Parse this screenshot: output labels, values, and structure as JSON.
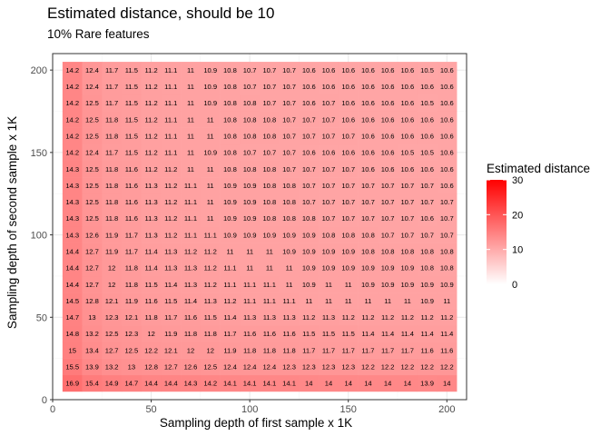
{
  "chart_data": {
    "type": "heatmap",
    "title": "Estimated distance, should be 10",
    "subtitle": "10% Rare features",
    "xlabel": "Sampling depth of first sample x 1K",
    "ylabel": "Sampling depth of second sample x 1K",
    "xlim": [
      0,
      210
    ],
    "ylim": [
      0,
      210
    ],
    "x_ticks": [
      0,
      50,
      100,
      150,
      200
    ],
    "y_ticks": [
      0,
      50,
      100,
      150,
      200
    ],
    "grid": true,
    "x": [
      10,
      20,
      30,
      40,
      50,
      60,
      70,
      80,
      90,
      100,
      110,
      120,
      130,
      140,
      150,
      160,
      170,
      180,
      190,
      200
    ],
    "y": [
      10,
      20,
      30,
      40,
      50,
      60,
      70,
      80,
      90,
      100,
      110,
      120,
      130,
      140,
      150,
      160,
      170,
      180,
      190,
      200
    ],
    "values": [
      [
        "16.9",
        "15.4",
        "14.9",
        "14.7",
        "14.4",
        "14.4",
        "14.3",
        "14.2",
        "14.1",
        "14.1",
        "14.1",
        "14.1",
        "14",
        "14",
        "14",
        "14",
        "14",
        "14",
        "13.9",
        "14"
      ],
      [
        "15.5",
        "13.9",
        "13.2",
        "13",
        "12.8",
        "12.7",
        "12.6",
        "12.5",
        "12.4",
        "12.4",
        "12.4",
        "12.3",
        "12.3",
        "12.3",
        "12.3",
        "12.2",
        "12.2",
        "12.2",
        "12.2",
        "12.2"
      ],
      [
        "15",
        "13.4",
        "12.7",
        "12.5",
        "12.2",
        "12.1",
        "12",
        "12",
        "11.9",
        "11.8",
        "11.8",
        "11.8",
        "11.7",
        "11.7",
        "11.7",
        "11.7",
        "11.7",
        "11.7",
        "11.6",
        "11.6"
      ],
      [
        "14.8",
        "13.2",
        "12.5",
        "12.3",
        "12",
        "11.9",
        "11.8",
        "11.8",
        "11.7",
        "11.6",
        "11.6",
        "11.6",
        "11.5",
        "11.5",
        "11.5",
        "11.4",
        "11.4",
        "11.4",
        "11.4",
        "11.4"
      ],
      [
        "14.7",
        "13",
        "12.3",
        "12.1",
        "11.8",
        "11.7",
        "11.6",
        "11.5",
        "11.4",
        "11.3",
        "11.3",
        "11.3",
        "11.2",
        "11.3",
        "11.2",
        "11.2",
        "11.2",
        "11.2",
        "11.2",
        "11.2"
      ],
      [
        "14.5",
        "12.8",
        "12.1",
        "11.9",
        "11.6",
        "11.5",
        "11.4",
        "11.3",
        "11.2",
        "11.1",
        "11.1",
        "11.1",
        "11",
        "11",
        "11",
        "11",
        "11",
        "11",
        "10.9",
        "11"
      ],
      [
        "14.4",
        "12.7",
        "12",
        "11.8",
        "11.5",
        "11.4",
        "11.3",
        "11.2",
        "11.1",
        "11.1",
        "11.1",
        "11",
        "10.9",
        "11",
        "11",
        "10.9",
        "10.9",
        "10.9",
        "10.9",
        "10.9"
      ],
      [
        "14.4",
        "12.7",
        "12",
        "11.8",
        "11.4",
        "11.3",
        "11.3",
        "11.2",
        "11.1",
        "11",
        "11",
        "11",
        "10.9",
        "10.9",
        "10.9",
        "10.9",
        "10.9",
        "10.9",
        "10.8",
        "10.8"
      ],
      [
        "14.4",
        "12.7",
        "11.9",
        "11.7",
        "11.4",
        "11.3",
        "11.2",
        "11.2",
        "11",
        "11",
        "11",
        "10.9",
        "10.9",
        "10.9",
        "10.9",
        "10.8",
        "10.8",
        "10.8",
        "10.8",
        "10.8"
      ],
      [
        "14.3",
        "12.6",
        "11.9",
        "11.7",
        "11.3",
        "11.2",
        "11.1",
        "11.1",
        "10.9",
        "10.9",
        "10.9",
        "10.9",
        "10.9",
        "10.8",
        "10.8",
        "10.8",
        "10.7",
        "10.7",
        "10.7",
        "10.7"
      ],
      [
        "14.3",
        "12.5",
        "11.8",
        "11.6",
        "11.3",
        "11.2",
        "11.1",
        "11",
        "10.9",
        "10.9",
        "10.8",
        "10.8",
        "10.8",
        "10.7",
        "10.7",
        "10.7",
        "10.7",
        "10.7",
        "10.6",
        "10.7"
      ],
      [
        "14.3",
        "12.5",
        "11.8",
        "11.6",
        "11.3",
        "11.2",
        "11.1",
        "11",
        "10.9",
        "10.9",
        "10.8",
        "10.8",
        "10.7",
        "10.7",
        "10.7",
        "10.7",
        "10.7",
        "10.7",
        "10.7",
        "10.7"
      ],
      [
        "14.3",
        "12.5",
        "11.8",
        "11.6",
        "11.3",
        "11.2",
        "11.1",
        "11",
        "10.9",
        "10.9",
        "10.8",
        "10.8",
        "10.7",
        "10.7",
        "10.7",
        "10.7",
        "10.7",
        "10.7",
        "10.7",
        "10.6"
      ],
      [
        "14.3",
        "12.5",
        "11.8",
        "11.6",
        "11.2",
        "11.2",
        "11",
        "11",
        "10.8",
        "10.8",
        "10.8",
        "10.7",
        "10.7",
        "10.7",
        "10.7",
        "10.6",
        "10.6",
        "10.6",
        "10.6",
        "10.6"
      ],
      [
        "14.2",
        "12.4",
        "11.7",
        "11.5",
        "11.2",
        "11.1",
        "11",
        "10.9",
        "10.8",
        "10.7",
        "10.7",
        "10.7",
        "10.6",
        "10.6",
        "10.6",
        "10.6",
        "10.6",
        "10.5",
        "10.5",
        "10.6"
      ],
      [
        "14.2",
        "12.5",
        "11.8",
        "11.5",
        "11.2",
        "11.1",
        "11",
        "11",
        "10.8",
        "10.8",
        "10.8",
        "10.7",
        "10.7",
        "10.7",
        "10.7",
        "10.6",
        "10.6",
        "10.6",
        "10.6",
        "10.6"
      ],
      [
        "14.2",
        "12.5",
        "11.8",
        "11.5",
        "11.2",
        "11.1",
        "11",
        "11",
        "10.8",
        "10.8",
        "10.8",
        "10.7",
        "10.7",
        "10.7",
        "10.6",
        "10.6",
        "10.6",
        "10.6",
        "10.6",
        "10.6"
      ],
      [
        "14.2",
        "12.5",
        "11.7",
        "11.5",
        "11.2",
        "11.1",
        "11",
        "10.9",
        "10.8",
        "10.8",
        "10.7",
        "10.7",
        "10.6",
        "10.7",
        "10.6",
        "10.6",
        "10.6",
        "10.6",
        "10.5",
        "10.6"
      ],
      [
        "14.2",
        "12.4",
        "11.7",
        "11.5",
        "11.2",
        "11.1",
        "11",
        "10.9",
        "10.8",
        "10.7",
        "10.7",
        "10.7",
        "10.6",
        "10.6",
        "10.6",
        "10.6",
        "10.6",
        "10.6",
        "10.6",
        "10.6"
      ],
      [
        "14.2",
        "12.4",
        "11.7",
        "11.5",
        "11.2",
        "11.1",
        "11",
        "10.9",
        "10.8",
        "10.7",
        "10.7",
        "10.7",
        "10.6",
        "10.6",
        "10.6",
        "10.6",
        "10.6",
        "10.6",
        "10.5",
        "10.6"
      ]
    ],
    "legend": {
      "title": "Estimated distance",
      "placement": "right",
      "range": [
        0,
        30
      ],
      "ticks": [
        0,
        10,
        20,
        30
      ],
      "low_color": "#ffffff",
      "high_color": "#ff0000"
    },
    "colors": {
      "panel_border": "#333333",
      "grid_major": "#ebebeb",
      "grid_minor": "#f5f5f5",
      "tick_label": "#4d4d4d"
    }
  }
}
